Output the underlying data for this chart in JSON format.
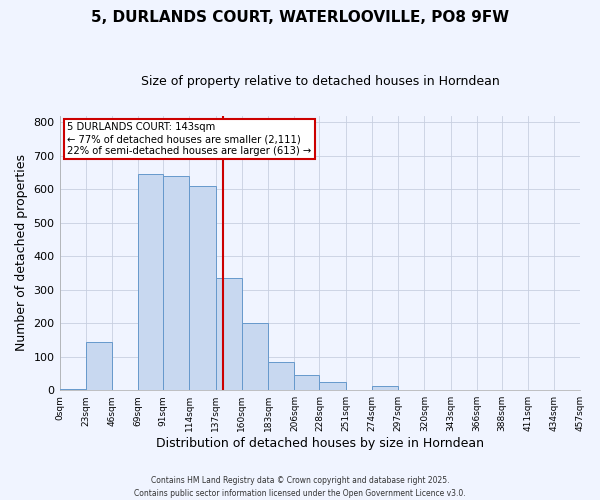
{
  "title": "5, DURLANDS COURT, WATERLOOVILLE, PO8 9FW",
  "subtitle": "Size of property relative to detached houses in Horndean",
  "xlabel": "Distribution of detached houses by size in Horndean",
  "ylabel": "Number of detached properties",
  "bin_edges": [
    0,
    23,
    46,
    69,
    91,
    114,
    137,
    160,
    183,
    206,
    228,
    251,
    274,
    297,
    320,
    343,
    366,
    388,
    411,
    434,
    457
  ],
  "bar_heights": [
    5,
    145,
    0,
    645,
    640,
    610,
    335,
    200,
    85,
    45,
    25,
    0,
    12,
    2,
    0,
    0,
    0,
    0,
    0,
    0
  ],
  "bar_facecolor": "#c8d8f0",
  "bar_edgecolor": "#6699cc",
  "vline_x": 143,
  "vline_color": "#cc0000",
  "annotation_title": "5 DURLANDS COURT: 143sqm",
  "annotation_line1": "← 77% of detached houses are smaller (2,111)",
  "annotation_line2": "22% of semi-detached houses are larger (613) →",
  "annotation_box_edgecolor": "#cc0000",
  "ylim": [
    0,
    820
  ],
  "xlim": [
    0,
    457
  ],
  "yticks": [
    0,
    100,
    200,
    300,
    400,
    500,
    600,
    700,
    800
  ],
  "footer1": "Contains HM Land Registry data © Crown copyright and database right 2025.",
  "footer2": "Contains public sector information licensed under the Open Government Licence v3.0.",
  "bg_color": "#f0f4ff",
  "grid_color": "#c8cfe0"
}
